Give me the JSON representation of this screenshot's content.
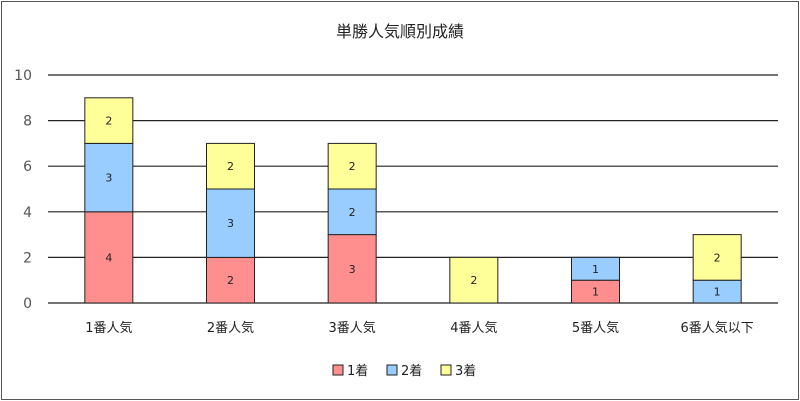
{
  "chart_data": {
    "type": "bar",
    "stacked": true,
    "title": "単勝人気順別成績",
    "xlabel": "",
    "ylabel": "",
    "ylim": [
      0,
      10
    ],
    "yticks": [
      0,
      2,
      4,
      6,
      8,
      10
    ],
    "grid": true,
    "legend_position": "bottom",
    "categories": [
      "1番人気",
      "2番人気",
      "3番人気",
      "4番人気",
      "5番人気",
      "6番人気以下"
    ],
    "series": [
      {
        "name": "1着",
        "color": "#ff8f8f",
        "values": [
          4,
          2,
          3,
          0,
          1,
          0
        ]
      },
      {
        "name": "2着",
        "color": "#99ccff",
        "values": [
          3,
          3,
          2,
          0,
          1,
          1
        ]
      },
      {
        "name": "3着",
        "color": "#ffff99",
        "values": [
          2,
          2,
          2,
          2,
          0,
          2
        ]
      }
    ]
  }
}
